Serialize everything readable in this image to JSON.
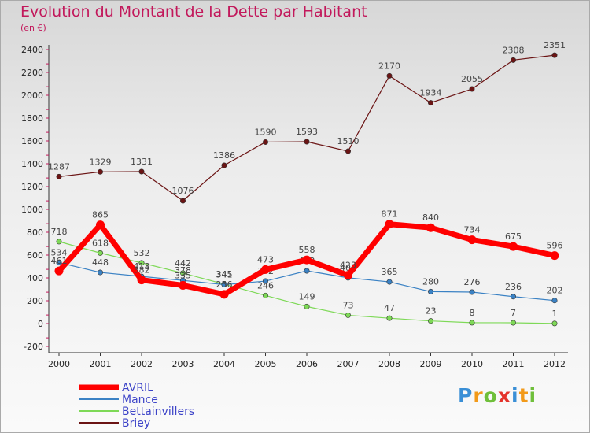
{
  "title": "Evolution du Montant de la Dette par Habitant",
  "subtitle": "(en €)",
  "logo": {
    "text": "Proxiti",
    "colors": [
      "#3a8fd6",
      "#f29a1a",
      "#6fbf3a",
      "#e4332b",
      "#3a8fd6",
      "#f29a1a",
      "#6fbf3a"
    ]
  },
  "chart_data": {
    "type": "line",
    "x": [
      "2000",
      "2001",
      "2002",
      "2003",
      "2004",
      "2005",
      "2006",
      "2007",
      "2008",
      "2009",
      "2010",
      "2011",
      "2012"
    ],
    "yticks": [
      "-200",
      "0",
      "200",
      "400",
      "600",
      "800",
      "1000",
      "1200",
      "1400",
      "1600",
      "1800",
      "2000",
      "2200",
      "2400"
    ],
    "ylim": [
      -200,
      2400
    ],
    "grid": false,
    "legend_position": "bottom-left",
    "series": [
      {
        "name": "Briey",
        "color": "#6b1414",
        "values": [
          1287,
          1329,
          1331,
          1076,
          1386,
          1590,
          1593,
          1510,
          2170,
          1934,
          2055,
          2308,
          2351
        ],
        "labels": [
          "1287",
          "1329",
          "1331",
          "1076",
          "1386",
          "1590",
          "1593",
          "1510",
          "2170",
          "1934",
          "2055",
          "2308",
          "2351"
        ]
      },
      {
        "name": "Bettainvillers",
        "color": "#7ed957",
        "values": [
          718,
          618,
          532,
          442,
          345,
          246,
          149,
          73,
          47,
          23,
          8,
          7,
          1
        ],
        "labels": [
          "718",
          "618",
          "532",
          "442",
          "345",
          "246",
          "149",
          "73",
          "47",
          "23",
          "8",
          "7",
          "1"
        ]
      },
      {
        "name": "Mance",
        "color": "#3b82c4",
        "values": [
          534,
          448,
          413,
          378,
          341,
          372,
          462,
          401,
          365,
          280,
          276,
          236,
          202
        ],
        "labels": [
          "534",
          "448",
          "413",
          "378",
          "341",
          "372",
          "462",
          "401",
          "365",
          "280",
          "276",
          "236",
          "202"
        ]
      },
      {
        "name": "AVRIL",
        "color": "#ff0000",
        "values": [
          461,
          865,
          382,
          335,
          256,
          473,
          558,
          423,
          871,
          840,
          734,
          675,
          596
        ],
        "labels": [
          "461",
          "865",
          "382",
          "335",
          "256",
          "473",
          "558",
          "423",
          "871",
          "840",
          "734",
          "675",
          "596"
        ]
      }
    ],
    "legend_order": [
      "AVRIL",
      "Mance",
      "Bettainvillers",
      "Briey"
    ]
  }
}
